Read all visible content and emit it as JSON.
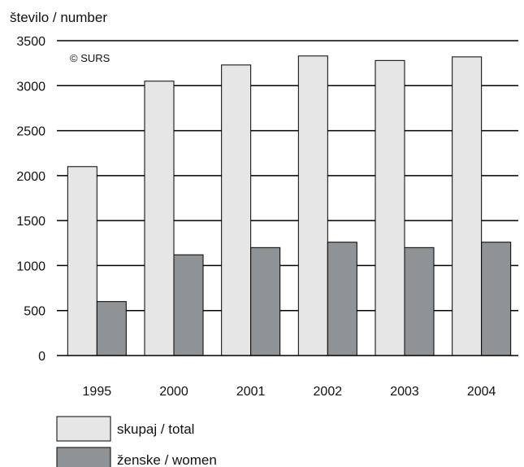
{
  "chart_data": {
    "type": "bar",
    "ylabel": "število / number",
    "copyright": "© SURS",
    "categories": [
      "1995",
      "2000",
      "2001",
      "2002",
      "2003",
      "2004"
    ],
    "series": [
      {
        "name": "skupaj / total",
        "values": [
          2100,
          3050,
          3230,
          3330,
          3280,
          3320
        ],
        "color": "#e6e6e6"
      },
      {
        "name": "ženske / women",
        "values": [
          600,
          1120,
          1200,
          1260,
          1200,
          1260
        ],
        "color": "#8f9396"
      }
    ],
    "ylim": [
      0,
      3500
    ],
    "yticks": [
      "0",
      "500",
      "1000",
      "1500",
      "2000",
      "2500",
      "3000",
      "3500"
    ],
    "grid": true,
    "legend_position": "bottom-left"
  }
}
